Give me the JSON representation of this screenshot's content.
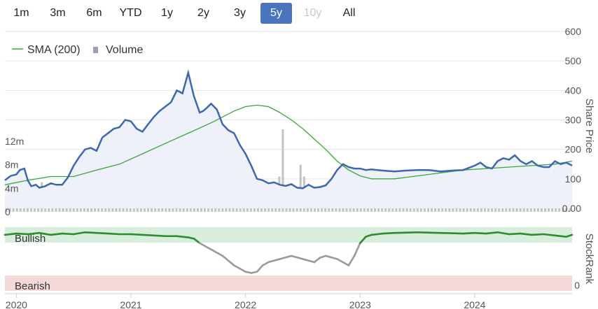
{
  "range_selector": {
    "buttons": [
      {
        "label": "1m",
        "state": "normal"
      },
      {
        "label": "3m",
        "state": "normal"
      },
      {
        "label": "6m",
        "state": "normal"
      },
      {
        "label": "YTD",
        "state": "normal"
      },
      {
        "label": "1y",
        "state": "normal"
      },
      {
        "label": "2y",
        "state": "normal"
      },
      {
        "label": "3y",
        "state": "normal"
      },
      {
        "label": "5y",
        "state": "active"
      },
      {
        "label": "10y",
        "state": "disabled"
      },
      {
        "label": "All",
        "state": "normal"
      }
    ]
  },
  "colors": {
    "price_line": "#3d68b0",
    "price_fill": "#eef1f9",
    "sma_line": "#3aa63a",
    "volume_bar": "#c4c4c4",
    "stockrank_bullish": "#2e8b2e",
    "stockrank_neutral": "#9a9a9a",
    "bullish_band": "#d8eedc",
    "bearish_band": "#f5d9d9",
    "bullish_text": "#2e8b2e",
    "bearish_text": "#d44949",
    "active_button": "#4a74bd"
  },
  "chart_data": [
    {
      "type": "line",
      "legend": [
        "SMA (200)",
        "Volume"
      ],
      "legend_placement": "top-left",
      "price_axis": {
        "label": "Share Price",
        "ticks": [
          "600",
          "500",
          "400",
          "300",
          "200",
          "100",
          "0.00"
        ],
        "ylim": [
          0,
          600
        ]
      },
      "volume_axis": {
        "ticks": [
          "12m",
          "8m",
          "4m",
          "0"
        ],
        "ylim": [
          0,
          14
        ]
      },
      "x_axis": {
        "ticks": [
          "2020",
          "2021",
          "2022",
          "2023",
          "2024"
        ],
        "xlim": [
          2019.9,
          2024.85
        ]
      },
      "series": [
        {
          "name": "",
          "kind": "share_price",
          "x": [
            2019.9,
            2019.95,
            2020.0,
            2020.03,
            2020.07,
            2020.1,
            2020.13,
            2020.17,
            2020.2,
            2020.25,
            2020.3,
            2020.35,
            2020.4,
            2020.45,
            2020.5,
            2020.55,
            2020.6,
            2020.65,
            2020.7,
            2020.75,
            2020.8,
            2020.85,
            2020.9,
            2020.95,
            2021.0,
            2021.05,
            2021.1,
            2021.15,
            2021.2,
            2021.25,
            2021.3,
            2021.35,
            2021.4,
            2021.45,
            2021.5,
            2021.55,
            2021.6,
            2021.63,
            2021.66,
            2021.7,
            2021.75,
            2021.8,
            2021.85,
            2021.9,
            2021.95,
            2022.0,
            2022.05,
            2022.1,
            2022.15,
            2022.2,
            2022.25,
            2022.3,
            2022.35,
            2022.4,
            2022.45,
            2022.5,
            2022.55,
            2022.6,
            2022.65,
            2022.7,
            2022.75,
            2022.8,
            2022.85,
            2022.9,
            2022.95,
            2023.0,
            2023.05,
            2023.1,
            2023.15,
            2023.2,
            2023.3,
            2023.4,
            2023.5,
            2023.6,
            2023.7,
            2023.8,
            2023.9,
            2024.0,
            2024.05,
            2024.1,
            2024.15,
            2024.2,
            2024.25,
            2024.3,
            2024.35,
            2024.4,
            2024.45,
            2024.5,
            2024.55,
            2024.6,
            2024.65,
            2024.7,
            2024.75,
            2024.8,
            2024.85
          ],
          "values": [
            95,
            110,
            115,
            130,
            135,
            95,
            75,
            80,
            70,
            75,
            85,
            80,
            80,
            105,
            145,
            175,
            200,
            205,
            195,
            240,
            255,
            270,
            275,
            300,
            295,
            270,
            260,
            285,
            310,
            330,
            345,
            360,
            400,
            390,
            460,
            380,
            325,
            330,
            340,
            355,
            335,
            285,
            265,
            255,
            215,
            185,
            145,
            100,
            95,
            85,
            88,
            80,
            76,
            82,
            70,
            68,
            80,
            70,
            72,
            78,
            100,
            130,
            150,
            140,
            135,
            135,
            130,
            132,
            130,
            128,
            125,
            128,
            130,
            130,
            125,
            128,
            130,
            145,
            155,
            140,
            135,
            160,
            170,
            165,
            180,
            160,
            150,
            160,
            145,
            140,
            140,
            160,
            150,
            155,
            145
          ]
        },
        {
          "name": "SMA (200)",
          "kind": "sma",
          "x": [
            2019.9,
            2020.1,
            2020.3,
            2020.5,
            2020.7,
            2020.9,
            2021.1,
            2021.3,
            2021.5,
            2021.7,
            2021.8,
            2021.9,
            2022.0,
            2022.1,
            2022.2,
            2022.3,
            2022.4,
            2022.5,
            2022.6,
            2022.7,
            2022.8,
            2022.9,
            2023.0,
            2023.1,
            2023.2,
            2023.3,
            2023.5,
            2023.7,
            2023.9,
            2024.1,
            2024.3,
            2024.5,
            2024.7,
            2024.85
          ],
          "values": [
            80,
            95,
            108,
            108,
            130,
            150,
            185,
            220,
            255,
            290,
            310,
            330,
            345,
            350,
            345,
            325,
            300,
            270,
            235,
            200,
            160,
            130,
            110,
            100,
            100,
            100,
            110,
            120,
            130,
            135,
            140,
            145,
            150,
            160
          ]
        },
        {
          "name": "Volume",
          "kind": "volume_bars",
          "approx_values_m": [
            1,
            2,
            1,
            2,
            3,
            4,
            2,
            1,
            2,
            3,
            5,
            2,
            3,
            1,
            2,
            4,
            2,
            1,
            3,
            2,
            1,
            2,
            5,
            3,
            2,
            1,
            2,
            3,
            1,
            4,
            2,
            1,
            3,
            2,
            5,
            2,
            3,
            12,
            2,
            1,
            2,
            3,
            4,
            2,
            1,
            2,
            3,
            5,
            2,
            1,
            3,
            2,
            1,
            2,
            3,
            12,
            2,
            1,
            3,
            2,
            1,
            2,
            4,
            2,
            3,
            2,
            5,
            3,
            2,
            1,
            2,
            3,
            2,
            1,
            2,
            4,
            3,
            6,
            14,
            2,
            1,
            3,
            2,
            8,
            6,
            4,
            3,
            2,
            1,
            3,
            2,
            1,
            2,
            4,
            2,
            1,
            2,
            3,
            2,
            1,
            2,
            3,
            5,
            2,
            1,
            3,
            2,
            4,
            6,
            2,
            1,
            2,
            3,
            2,
            1,
            4,
            2,
            1,
            3,
            2,
            2,
            1,
            3,
            2,
            1,
            2,
            4,
            2,
            3,
            2,
            1,
            2,
            3,
            2,
            1,
            3,
            2,
            1,
            2,
            5,
            2,
            1,
            3,
            2,
            4,
            2,
            1,
            2,
            3,
            2,
            6,
            2,
            1,
            3,
            2,
            1,
            2,
            3,
            2,
            5
          ]
        }
      ]
    },
    {
      "type": "area",
      "axis_label": "StockRank",
      "bands": [
        {
          "label": "Bullish"
        },
        {
          "label": "Bearish"
        }
      ],
      "ytick": "0",
      "ylim": [
        0,
        100
      ],
      "series": [
        {
          "name": "",
          "x": [
            2019.9,
            2020.0,
            2020.1,
            2020.2,
            2020.3,
            2020.4,
            2020.5,
            2020.6,
            2020.7,
            2020.8,
            2020.9,
            2021.0,
            2021.1,
            2021.2,
            2021.3,
            2021.4,
            2021.5,
            2021.55,
            2021.6,
            2021.7,
            2021.8,
            2021.9,
            2022.0,
            2022.05,
            2022.1,
            2022.15,
            2022.2,
            2022.3,
            2022.4,
            2022.5,
            2022.6,
            2022.65,
            2022.7,
            2022.8,
            2022.9,
            2022.95,
            2023.0,
            2023.05,
            2023.1,
            2023.2,
            2023.3,
            2023.5,
            2023.7,
            2023.9,
            2024.0,
            2024.1,
            2024.2,
            2024.3,
            2024.4,
            2024.5,
            2024.6,
            2024.7,
            2024.8,
            2024.85
          ],
          "values": [
            88,
            90,
            89,
            91,
            88,
            90,
            89,
            92,
            91,
            90,
            89,
            89,
            88,
            87,
            86,
            86,
            84,
            82,
            75,
            65,
            55,
            40,
            30,
            28,
            30,
            40,
            45,
            50,
            55,
            50,
            45,
            52,
            55,
            50,
            40,
            55,
            75,
            85,
            88,
            90,
            91,
            92,
            91,
            90,
            91,
            90,
            92,
            89,
            90,
            88,
            89,
            87,
            85,
            88
          ]
        }
      ]
    }
  ]
}
